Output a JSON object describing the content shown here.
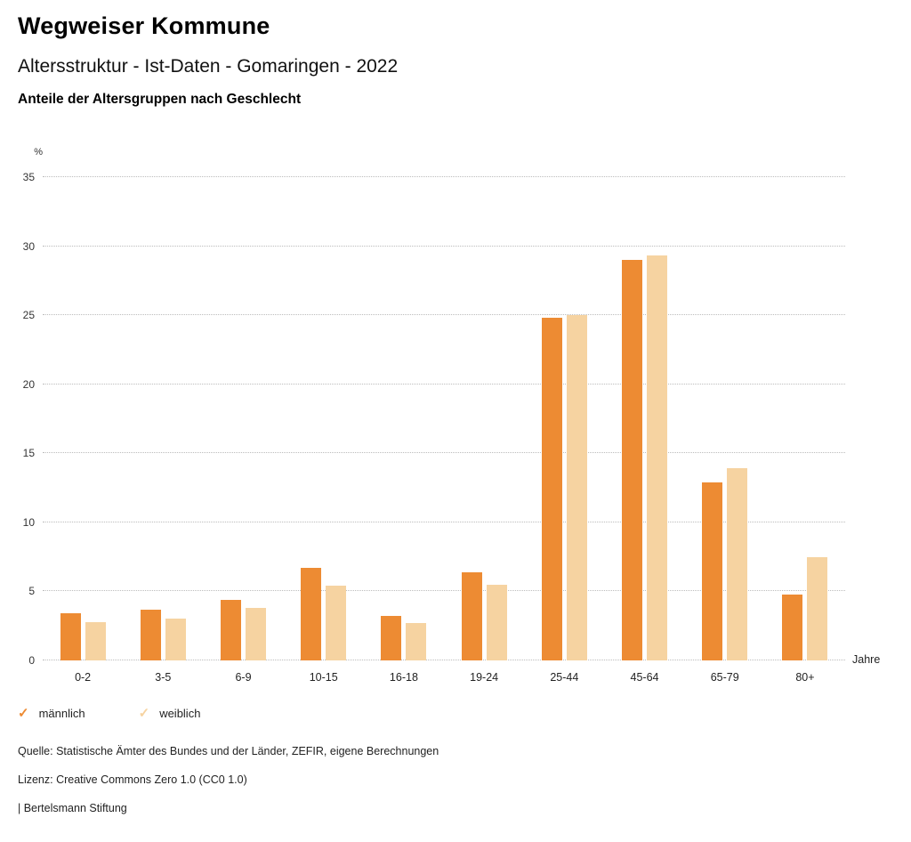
{
  "header": {
    "title": "Wegweiser Kommune",
    "subtitle": "Altersstruktur - Ist-Daten - Gomaringen - 2022",
    "chart_heading": "Anteile der Altersgruppen nach Geschlecht"
  },
  "chart_data": {
    "type": "bar",
    "title": "Anteile der Altersgruppen nach Geschlecht",
    "ylabel": "%",
    "xlabel": "Jahre",
    "categories": [
      "0-2",
      "3-5",
      "6-9",
      "10-15",
      "16-18",
      "19-24",
      "25-44",
      "45-64",
      "65-79",
      "80+"
    ],
    "series": [
      {
        "name": "männlich",
        "color": "#ED8B33",
        "values": [
          3.4,
          3.7,
          4.4,
          6.7,
          3.2,
          6.4,
          24.8,
          29.0,
          12.9,
          4.8
        ]
      },
      {
        "name": "weiblich",
        "color": "#F6D3A1",
        "values": [
          2.8,
          3.0,
          3.8,
          5.4,
          2.7,
          5.5,
          25.0,
          29.3,
          13.9,
          7.5
        ]
      }
    ],
    "ylim": [
      0,
      35
    ],
    "ytick_step": 5,
    "grid": true,
    "gridline_style": "dotted",
    "legend_position": "bottom",
    "legend_marker": "✓"
  },
  "footer": {
    "source": "Quelle: Statistische Ämter des Bundes und der Länder, ZEFIR, eigene Berechnungen",
    "license": "Lizenz: Creative Commons Zero 1.0 (CC0 1.0)",
    "attribution": "| Bertelsmann Stiftung"
  }
}
